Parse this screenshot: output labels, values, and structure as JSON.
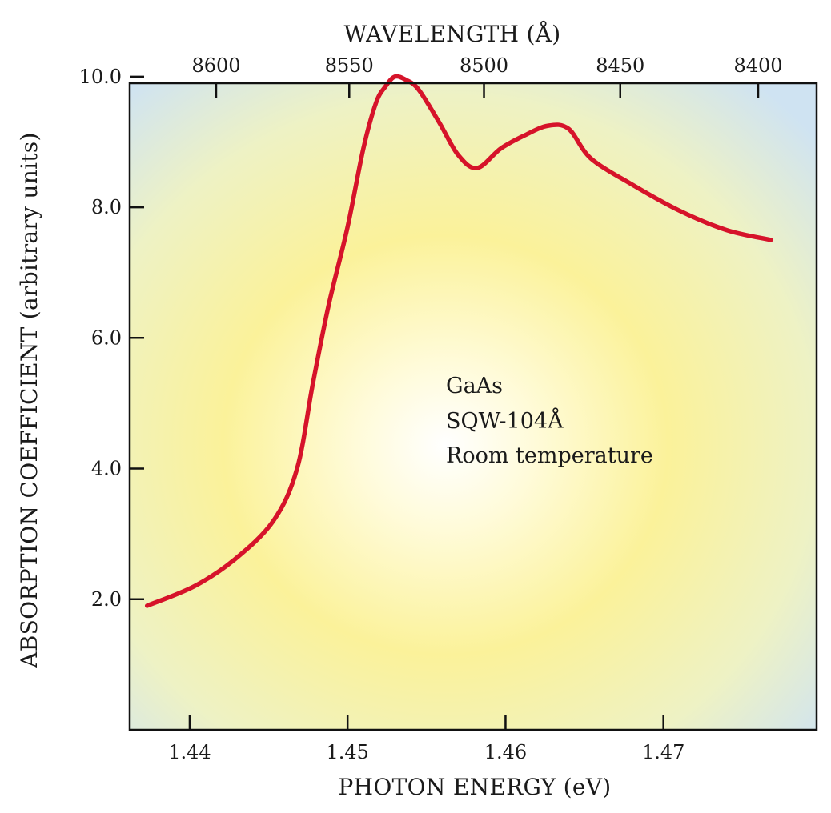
{
  "chart_data": {
    "type": "line",
    "xlabel": "PHOTON ENERGY (eV)",
    "x2label": "WAVELENGTH (Å)",
    "ylabel": "ABSORPTION COEFFICIENT (arbitrary units)",
    "xlim": [
      1.4362,
      1.4797
    ],
    "ylim": [
      0,
      9.9
    ],
    "x_ticks": [
      1.44,
      1.45,
      1.46,
      1.47
    ],
    "x_tick_labels": [
      "1.44",
      "1.45",
      "1.46",
      "1.47"
    ],
    "x2_ticks": [
      8600,
      8550,
      8500,
      8450,
      8400
    ],
    "x2_tick_labels": [
      "8600",
      "8550",
      "8500",
      "8450",
      "8400"
    ],
    "y_ticks": [
      2.0,
      4.0,
      6.0,
      8.0,
      10.0
    ],
    "y_tick_labels": [
      "2.0",
      "4.0",
      "6.0",
      "8.0",
      "10.0"
    ],
    "annotations": [
      "GaAs",
      "SQW-104Å",
      "Room temperature"
    ],
    "series": [
      {
        "color": "#d6132a",
        "x": [
          1.4373,
          1.4403,
          1.4428,
          1.4453,
          1.4468,
          1.4478,
          1.4488,
          1.45,
          1.451,
          1.4518,
          1.4524,
          1.453,
          1.4537,
          1.4545,
          1.4558,
          1.457,
          1.4582,
          1.4597,
          1.4612,
          1.4627,
          1.464,
          1.4654,
          1.468,
          1.471,
          1.474,
          1.4768
        ],
        "y": [
          1.9,
          2.2,
          2.6,
          3.2,
          4.0,
          5.3,
          6.5,
          7.7,
          8.9,
          9.6,
          9.85,
          10.0,
          9.95,
          9.8,
          9.3,
          8.8,
          8.6,
          8.9,
          9.1,
          9.25,
          9.2,
          8.75,
          8.35,
          7.95,
          7.65,
          7.5
        ]
      }
    ]
  }
}
